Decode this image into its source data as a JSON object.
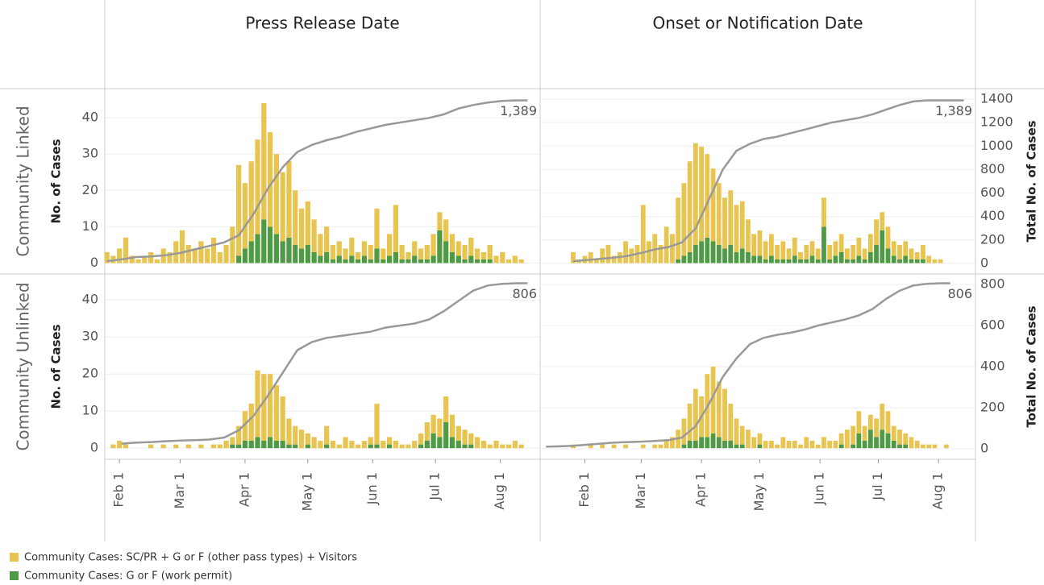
{
  "chart_data": [
    {
      "type": "bar",
      "title": "Press Release Date",
      "row_label": "Community Linked",
      "ylabel": "No. of Cases",
      "x": [
        -6,
        -3,
        0,
        3,
        6,
        9,
        12,
        15,
        18,
        21,
        24,
        27,
        30,
        33,
        36,
        39,
        42,
        45,
        48,
        51,
        54,
        57,
        60,
        63,
        66,
        69,
        72,
        75,
        78,
        81,
        84,
        87,
        90,
        93,
        96,
        99,
        102,
        105,
        108,
        111,
        114,
        117,
        120,
        123,
        126,
        129,
        132,
        135,
        138,
        141,
        144,
        147,
        150,
        153,
        156,
        159,
        162,
        165,
        168,
        171,
        174,
        177,
        180,
        183,
        186,
        189,
        192,
        195
      ],
      "xlim": [
        -7,
        201
      ],
      "ylim": [
        -3,
        48
      ],
      "yticks": [
        0,
        10,
        20,
        30,
        40
      ],
      "y2lim": [
        -89,
        1489
      ],
      "grid": true,
      "series": [
        {
          "name": "Community Cases: SC/PR + G or F (other pass types) + Visitors",
          "color": "#e8c550",
          "values": [
            3,
            2,
            4,
            7,
            2,
            1,
            2,
            3,
            1,
            4,
            3,
            6,
            9,
            5,
            4,
            6,
            4,
            7,
            3,
            5,
            10,
            25,
            18,
            22,
            26,
            32,
            26,
            22,
            19,
            21,
            15,
            11,
            12,
            9,
            6,
            7,
            4,
            4,
            3,
            5,
            2,
            4,
            4,
            11,
            3,
            6,
            13,
            4,
            2,
            4,
            3,
            4,
            6,
            5,
            6,
            5,
            4,
            4,
            5,
            3,
            2,
            4,
            2,
            3,
            1,
            2,
            1,
            0
          ]
        },
        {
          "name": "Community Cases: G or F (work permit)",
          "color": "#4e9a45",
          "values": [
            0,
            0,
            0,
            0,
            0,
            0,
            0,
            0,
            0,
            0,
            0,
            0,
            0,
            0,
            0,
            0,
            0,
            0,
            0,
            0,
            0,
            2,
            4,
            6,
            8,
            12,
            10,
            8,
            6,
            7,
            5,
            4,
            5,
            3,
            2,
            3,
            1,
            2,
            1,
            2,
            1,
            2,
            1,
            4,
            1,
            2,
            3,
            1,
            1,
            2,
            1,
            1,
            2,
            9,
            6,
            3,
            2,
            1,
            2,
            1,
            1,
            1,
            0,
            0,
            0,
            0,
            0,
            0
          ]
        },
        {
          "type": "line",
          "axis": "y2",
          "color": "#999999",
          "end_label": "1,389",
          "x": [
            -6,
            1,
            8,
            15,
            22,
            29,
            36,
            43,
            50,
            57,
            64,
            71,
            78,
            85,
            92,
            99,
            106,
            113,
            120,
            127,
            134,
            141,
            148,
            155,
            162,
            169,
            176,
            183,
            190,
            195
          ],
          "values": [
            20,
            35,
            55,
            60,
            70,
            90,
            120,
            150,
            180,
            240,
            420,
            640,
            820,
            950,
            1010,
            1050,
            1080,
            1120,
            1150,
            1180,
            1200,
            1220,
            1240,
            1270,
            1320,
            1350,
            1370,
            1385,
            1389,
            1389
          ]
        }
      ]
    },
    {
      "type": "bar",
      "title": "Onset or Notification Date",
      "y2label": "Total No. of Cases",
      "x": [
        -6,
        -3,
        0,
        3,
        6,
        9,
        12,
        15,
        18,
        21,
        24,
        27,
        30,
        33,
        36,
        39,
        42,
        45,
        48,
        51,
        54,
        57,
        60,
        63,
        66,
        69,
        72,
        75,
        78,
        81,
        84,
        87,
        90,
        93,
        96,
        99,
        102,
        105,
        108,
        111,
        114,
        117,
        120,
        123,
        126,
        129,
        132,
        135,
        138,
        141,
        144,
        147,
        150,
        153,
        156,
        159,
        162,
        165,
        168,
        171,
        174,
        177,
        180,
        183,
        186,
        189,
        192,
        195
      ],
      "xlim": [
        -23,
        201
      ],
      "ylim": [
        -3,
        48
      ],
      "y2lim": [
        -89,
        1489
      ],
      "y2ticks": [
        0,
        200,
        400,
        600,
        800,
        1000,
        1200,
        1400
      ],
      "grid": true,
      "series": [
        {
          "color": "#e8c550",
          "values": [
            3,
            1,
            2,
            3,
            1,
            4,
            5,
            2,
            3,
            6,
            4,
            5,
            16,
            6,
            8,
            5,
            10,
            8,
            17,
            20,
            25,
            28,
            26,
            23,
            20,
            17,
            14,
            15,
            13,
            13,
            9,
            6,
            7,
            5,
            6,
            4,
            5,
            3,
            5,
            2,
            4,
            4,
            3,
            8,
            4,
            4,
            5,
            3,
            4,
            5,
            3,
            5,
            7,
            5,
            6,
            4,
            4,
            4,
            3,
            2,
            4,
            2,
            1,
            1,
            0,
            0,
            0,
            0
          ]
        },
        {
          "color": "#4e9a45",
          "values": [
            0,
            0,
            0,
            0,
            0,
            0,
            0,
            0,
            0,
            0,
            0,
            0,
            0,
            0,
            0,
            0,
            0,
            0,
            1,
            2,
            3,
            5,
            6,
            7,
            6,
            5,
            4,
            5,
            3,
            4,
            3,
            2,
            2,
            1,
            2,
            1,
            1,
            1,
            2,
            1,
            1,
            2,
            1,
            10,
            1,
            2,
            3,
            1,
            1,
            2,
            1,
            3,
            5,
            9,
            4,
            2,
            1,
            2,
            1,
            1,
            1,
            0,
            0,
            0,
            0,
            0,
            0,
            0
          ]
        },
        {
          "type": "line",
          "axis": "y2",
          "color": "#999999",
          "end_label": "1,389",
          "x": [
            -6,
            1,
            8,
            15,
            22,
            29,
            36,
            43,
            50,
            57,
            64,
            71,
            78,
            85,
            92,
            99,
            106,
            113,
            120,
            127,
            134,
            141,
            148,
            155,
            162,
            169,
            176,
            183,
            190,
            195
          ],
          "values": [
            20,
            30,
            40,
            50,
            65,
            90,
            120,
            140,
            180,
            300,
            550,
            800,
            960,
            1020,
            1060,
            1080,
            1110,
            1140,
            1170,
            1200,
            1220,
            1240,
            1270,
            1310,
            1350,
            1380,
            1389,
            1389,
            1389,
            1389
          ]
        }
      ]
    },
    {
      "type": "bar",
      "row_label": "Community Unlinked",
      "ylabel": "No. of Cases",
      "x": [
        -6,
        -3,
        0,
        3,
        6,
        9,
        12,
        15,
        18,
        21,
        24,
        27,
        30,
        33,
        36,
        39,
        42,
        45,
        48,
        51,
        54,
        57,
        60,
        63,
        66,
        69,
        72,
        75,
        78,
        81,
        84,
        87,
        90,
        93,
        96,
        99,
        102,
        105,
        108,
        111,
        114,
        117,
        120,
        123,
        126,
        129,
        132,
        135,
        138,
        141,
        144,
        147,
        150,
        153,
        156,
        159,
        162,
        165,
        168,
        171,
        174,
        177,
        180,
        183,
        186,
        189,
        192,
        195
      ],
      "xlim": [
        -7,
        201
      ],
      "xticks": [
        {
          "value": 0,
          "label": "Feb 1"
        },
        {
          "value": 29,
          "label": "Mar 1"
        },
        {
          "value": 60,
          "label": "Apr 1"
        },
        {
          "value": 90,
          "label": "May 1"
        },
        {
          "value": 121,
          "label": "Jun 1"
        },
        {
          "value": 151,
          "label": "Jul 1"
        },
        {
          "value": 182,
          "label": "Aug 1"
        }
      ],
      "ylim": [
        -3,
        47
      ],
      "yticks": [
        0,
        10,
        20,
        30,
        40
      ],
      "y2lim": [
        -51,
        851
      ],
      "grid": true,
      "series": [
        {
          "color": "#e8c550",
          "values": [
            0,
            1,
            2,
            1,
            0,
            0,
            0,
            1,
            0,
            1,
            0,
            1,
            0,
            1,
            0,
            1,
            0,
            1,
            1,
            2,
            2,
            5,
            8,
            10,
            18,
            18,
            17,
            15,
            12,
            7,
            5,
            5,
            3,
            3,
            2,
            5,
            2,
            1,
            3,
            2,
            1,
            2,
            2,
            11,
            2,
            2,
            2,
            1,
            1,
            2,
            3,
            5,
            5,
            5,
            7,
            6,
            4,
            4,
            3,
            3,
            2,
            1,
            2,
            1,
            1,
            2,
            1,
            0
          ]
        },
        {
          "color": "#4e9a45",
          "values": [
            0,
            0,
            0,
            0,
            0,
            0,
            0,
            0,
            0,
            0,
            0,
            0,
            0,
            0,
            0,
            0,
            0,
            0,
            0,
            0,
            1,
            1,
            2,
            2,
            3,
            2,
            3,
            2,
            2,
            1,
            1,
            0,
            1,
            0,
            0,
            1,
            0,
            0,
            0,
            0,
            0,
            0,
            1,
            1,
            0,
            1,
            0,
            0,
            0,
            0,
            1,
            2,
            4,
            3,
            7,
            3,
            2,
            1,
            1,
            0,
            0,
            0,
            0,
            0,
            0,
            0,
            0,
            0
          ]
        },
        {
          "type": "line",
          "axis": "y2",
          "color": "#999999",
          "end_label": "806",
          "x": [
            1,
            8,
            15,
            22,
            29,
            36,
            43,
            50,
            57,
            64,
            71,
            78,
            85,
            92,
            99,
            106,
            113,
            120,
            127,
            134,
            141,
            148,
            155,
            162,
            169,
            176,
            183,
            190,
            195
          ],
          "values": [
            25,
            30,
            33,
            37,
            40,
            42,
            45,
            55,
            90,
            160,
            260,
            370,
            480,
            520,
            540,
            550,
            560,
            570,
            590,
            600,
            610,
            630,
            670,
            720,
            770,
            795,
            803,
            806,
            806
          ]
        }
      ]
    },
    {
      "type": "bar",
      "y2label": "Total No. of Cases",
      "x": [
        -6,
        -3,
        0,
        3,
        6,
        9,
        12,
        15,
        18,
        21,
        24,
        27,
        30,
        33,
        36,
        39,
        42,
        45,
        48,
        51,
        54,
        57,
        60,
        63,
        66,
        69,
        72,
        75,
        78,
        81,
        84,
        87,
        90,
        93,
        96,
        99,
        102,
        105,
        108,
        111,
        114,
        117,
        120,
        123,
        126,
        129,
        132,
        135,
        138,
        141,
        144,
        147,
        150,
        153,
        156,
        159,
        162,
        165,
        168,
        171,
        174,
        177,
        180,
        183,
        186,
        189,
        192,
        195
      ],
      "xlim": [
        -23,
        201
      ],
      "xticks": [
        {
          "value": 0,
          "label": "Feb 1"
        },
        {
          "value": 29,
          "label": "Mar 1"
        },
        {
          "value": 60,
          "label": "Apr 1"
        },
        {
          "value": 90,
          "label": "May 1"
        },
        {
          "value": 121,
          "label": "Jun 1"
        },
        {
          "value": 151,
          "label": "Jul 1"
        },
        {
          "value": 182,
          "label": "Aug 1"
        }
      ],
      "ylim": [
        -3,
        47
      ],
      "y2lim": [
        -51,
        851
      ],
      "y2ticks": [
        0,
        200,
        400,
        600,
        800
      ],
      "grid": true,
      "series": [
        {
          "color": "#e8c550",
          "values": [
            1,
            0,
            0,
            1,
            0,
            1,
            0,
            1,
            0,
            1,
            0,
            0,
            1,
            0,
            1,
            1,
            2,
            3,
            5,
            7,
            10,
            14,
            11,
            17,
            18,
            15,
            14,
            10,
            7,
            5,
            5,
            3,
            3,
            2,
            2,
            1,
            3,
            2,
            2,
            1,
            3,
            2,
            1,
            3,
            2,
            2,
            3,
            5,
            5,
            6,
            4,
            4,
            5,
            7,
            6,
            4,
            4,
            3,
            3,
            2,
            1,
            1,
            1,
            0,
            1,
            0,
            0,
            0
          ]
        },
        {
          "color": "#4e9a45",
          "values": [
            0,
            0,
            0,
            0,
            0,
            0,
            0,
            0,
            0,
            0,
            0,
            0,
            0,
            0,
            0,
            0,
            0,
            0,
            0,
            1,
            2,
            2,
            3,
            3,
            4,
            3,
            2,
            2,
            1,
            1,
            0,
            0,
            1,
            0,
            0,
            0,
            0,
            0,
            0,
            0,
            0,
            0,
            0,
            0,
            0,
            0,
            1,
            0,
            1,
            4,
            2,
            5,
            3,
            5,
            4,
            2,
            1,
            1,
            0,
            0,
            0,
            0,
            0,
            0,
            0,
            0,
            0,
            0
          ]
        },
        {
          "type": "line",
          "axis": "y2",
          "color": "#999999",
          "end_label": "806",
          "x": [
            -20,
            -13,
            -6,
            1,
            8,
            15,
            22,
            29,
            36,
            43,
            50,
            57,
            64,
            71,
            78,
            85,
            92,
            99,
            106,
            113,
            120,
            127,
            134,
            141,
            148,
            155,
            162,
            169,
            176,
            183,
            188
          ],
          "values": [
            10,
            12,
            15,
            20,
            25,
            30,
            33,
            35,
            38,
            42,
            55,
            110,
            220,
            350,
            440,
            510,
            540,
            555,
            565,
            580,
            600,
            615,
            630,
            650,
            680,
            730,
            770,
            795,
            803,
            806,
            806
          ]
        }
      ]
    }
  ]
}
